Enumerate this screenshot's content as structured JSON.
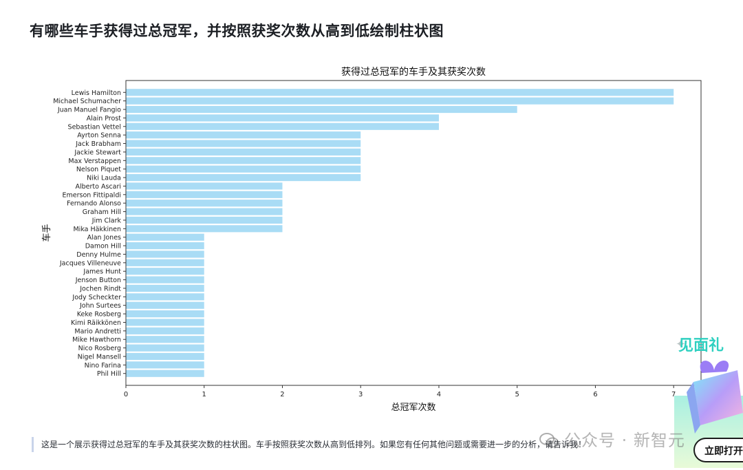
{
  "question": "有哪些车手获得过总冠军，并按照获奖次数从高到低绘制柱状图",
  "answer_text": "这是一个展示获得过总冠军的车手及其获奖次数的柱状图。车手按照获奖次数从高到低排列。如果您有任何其他问题或需要进一步的分析，请告诉我！",
  "watermark": {
    "icon": "wechat-icon",
    "text": "公众号 · 新智元"
  },
  "promo_text": "见面礼",
  "open_button_label": "立即打开",
  "colors": {
    "bar": "#a9dcf5",
    "axis": "#333333"
  },
  "chart_data": {
    "type": "bar",
    "orientation": "horizontal",
    "title": "获得过总冠军的车手及其获奖次数",
    "xlabel": "总冠军次数",
    "ylabel": "车手",
    "xlim": [
      0,
      7.35
    ],
    "xticks": [
      0,
      1,
      2,
      3,
      4,
      5,
      6,
      7
    ],
    "grid": false,
    "categories": [
      "Lewis Hamilton",
      "Michael Schumacher",
      "Juan Manuel Fangio",
      "Alain Prost",
      "Sebastian Vettel",
      "Ayrton Senna",
      "Jack Brabham",
      "Jackie Stewart",
      "Max Verstappen",
      "Nelson Piquet",
      "Niki Lauda",
      "Alberto Ascari",
      "Emerson Fittipaldi",
      "Fernando Alonso",
      "Graham Hill",
      "Jim Clark",
      "Mika Häkkinen",
      "Alan Jones",
      "Damon Hill",
      "Denny Hulme",
      "Jacques Villeneuve",
      "James Hunt",
      "Jenson Button",
      "Jochen Rindt",
      "Jody Scheckter",
      "John Surtees",
      "Keke Rosberg",
      "Kimi Räikkönen",
      "Mario Andretti",
      "Mike Hawthorn",
      "Nico Rosberg",
      "Nigel Mansell",
      "Nino Farina",
      "Phil Hill"
    ],
    "values": [
      7,
      7,
      5,
      4,
      4,
      3,
      3,
      3,
      3,
      3,
      3,
      2,
      2,
      2,
      2,
      2,
      2,
      1,
      1,
      1,
      1,
      1,
      1,
      1,
      1,
      1,
      1,
      1,
      1,
      1,
      1,
      1,
      1,
      1
    ]
  }
}
